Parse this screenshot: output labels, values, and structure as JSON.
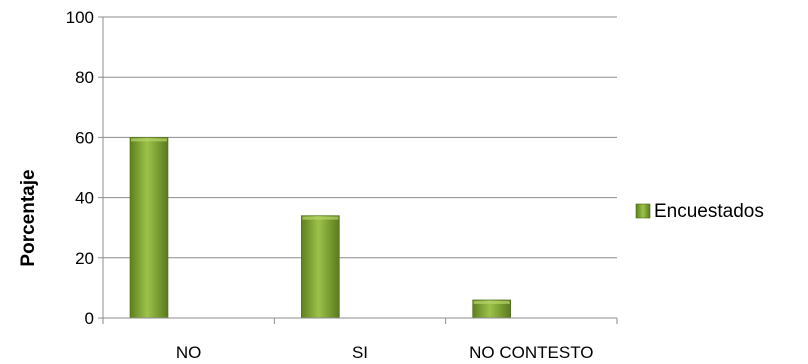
{
  "chart_data": {
    "type": "bar",
    "categories": [
      "NO",
      "SI",
      "NO CONTESTO"
    ],
    "series": [
      {
        "name": "Encuestados",
        "values": [
          60,
          34,
          6
        ],
        "color": "#7aa02e"
      }
    ],
    "ylabel": "Porcentaje",
    "xlabel": "",
    "ylim": [
      0,
      100
    ],
    "yticks": [
      "0",
      "20",
      "40",
      "60",
      "80",
      "100"
    ],
    "grid": true,
    "legend": "right"
  }
}
